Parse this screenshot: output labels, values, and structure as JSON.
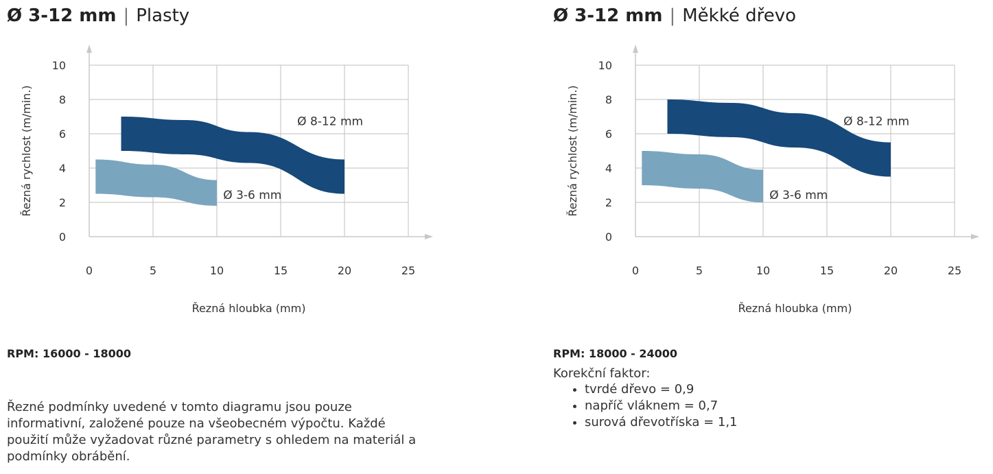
{
  "colors": {
    "large": "#17497a",
    "small": "#7aa5bf",
    "grid": "#bfbfbf",
    "axis": "#c8c8c8"
  },
  "left": {
    "title_bold": "Ø 3-12 mm",
    "title_sep": "|",
    "title_material": "Plasty",
    "rpm": "RPM: 16000 - 18000",
    "note": "Řezné podmínky uvedené v tomto diagramu jsou pouze informativní, založené pouze na všeobecném výpočtu. Každé použití může vyžadovat různé parametry s ohledem na materiál a podmínky obrábění."
  },
  "right": {
    "title_bold": "Ø 3-12 mm",
    "title_sep": "|",
    "title_material": "Měkké dřevo",
    "rpm": "RPM: 18000 - 24000",
    "correction_title": "Korekční faktor:",
    "correction_items": [
      "tvrdé dřevo = 0,9",
      "napříč vláknem = 0,7",
      "surová dřevotříska = 1,1"
    ]
  },
  "chart_data": [
    {
      "type": "area",
      "xlabel": "Řezná hloubka (mm)",
      "ylabel": "Řezná rychlost (m/min.)",
      "xlim": [
        0,
        25
      ],
      "ylim": [
        0,
        10
      ],
      "xticks": [
        "0",
        "5",
        "10",
        "15",
        "20",
        "25"
      ],
      "yticks": [
        "0",
        "2",
        "4",
        "6",
        "8",
        "10"
      ],
      "grid": true,
      "series": [
        {
          "name": "Ø 3-6 mm",
          "color_key": "small",
          "upper": [
            [
              0.5,
              4.5
            ],
            [
              5,
              4.2
            ],
            [
              10,
              3.3
            ]
          ],
          "lower": [
            [
              0.5,
              2.5
            ],
            [
              5,
              2.3
            ],
            [
              10,
              1.8
            ]
          ]
        },
        {
          "name": "Ø 8-12 mm",
          "color_key": "large",
          "upper": [
            [
              2.5,
              7.0
            ],
            [
              7.5,
              6.8
            ],
            [
              12.5,
              6.1
            ],
            [
              20,
              4.5
            ]
          ],
          "lower": [
            [
              2.5,
              5.0
            ],
            [
              7.5,
              4.8
            ],
            [
              12.5,
              4.3
            ],
            [
              20,
              2.5
            ]
          ]
        }
      ]
    },
    {
      "type": "area",
      "xlabel": "Řezná hloubka (mm)",
      "ylabel": "Řezná rychlost (m/min.)",
      "xlim": [
        0,
        25
      ],
      "ylim": [
        0,
        10
      ],
      "xticks": [
        "0",
        "5",
        "10",
        "15",
        "20",
        "25"
      ],
      "yticks": [
        "0",
        "2",
        "4",
        "6",
        "8",
        "10"
      ],
      "grid": true,
      "series": [
        {
          "name": "Ø 3-6 mm",
          "color_key": "small",
          "upper": [
            [
              0.5,
              5.0
            ],
            [
              5,
              4.8
            ],
            [
              10,
              3.9
            ]
          ],
          "lower": [
            [
              0.5,
              3.0
            ],
            [
              5,
              2.8
            ],
            [
              10,
              2.0
            ]
          ]
        },
        {
          "name": "Ø 8-12 mm",
          "color_key": "large",
          "upper": [
            [
              2.5,
              8.0
            ],
            [
              7.5,
              7.8
            ],
            [
              12.5,
              7.2
            ],
            [
              20,
              5.5
            ]
          ],
          "lower": [
            [
              2.5,
              6.0
            ],
            [
              7.5,
              5.8
            ],
            [
              12.5,
              5.2
            ],
            [
              20,
              3.5
            ]
          ]
        }
      ]
    }
  ]
}
